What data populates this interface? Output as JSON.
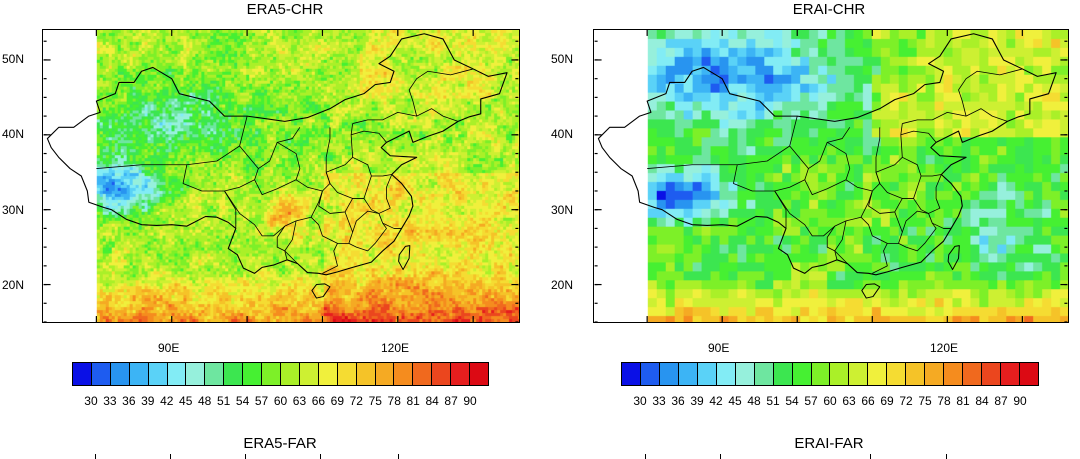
{
  "panels": [
    {
      "id": "era5-chr",
      "title": "ERA5-CHR",
      "style": "fine"
    },
    {
      "id": "erai-chr",
      "title": "ERAI-CHR",
      "style": "coarse"
    }
  ],
  "bottom_titles": [
    {
      "id": "era5-far",
      "title": "ERA5-FAR"
    },
    {
      "id": "erai-far",
      "title": "ERAI-FAR"
    }
  ],
  "lat_labels": [
    "50N",
    "40N",
    "30N",
    "20N"
  ],
  "lon_labels": [
    "90E",
    "120E"
  ],
  "colorbar": {
    "labels": [
      "30",
      "33",
      "36",
      "39",
      "42",
      "45",
      "48",
      "51",
      "54",
      "57",
      "60",
      "63",
      "66",
      "69",
      "72",
      "75",
      "78",
      "81",
      "84",
      "87",
      "90"
    ],
    "colors": [
      "#0a10e6",
      "#1e5cf0",
      "#2894f0",
      "#3cb4f5",
      "#5ad2f7",
      "#82ecf5",
      "#96f0dc",
      "#6ee6a0",
      "#3ce650",
      "#46f032",
      "#7df028",
      "#aaf028",
      "#cdf032",
      "#f0f03c",
      "#f5dc32",
      "#f5c328",
      "#f5aa23",
      "#f58c1e",
      "#f0691e",
      "#eb461e",
      "#e61e1e",
      "#dc0a14"
    ]
  },
  "map_extent": {
    "lon_min": 73,
    "lon_max": 136,
    "lat_min": 15,
    "lat_max": 54
  }
}
